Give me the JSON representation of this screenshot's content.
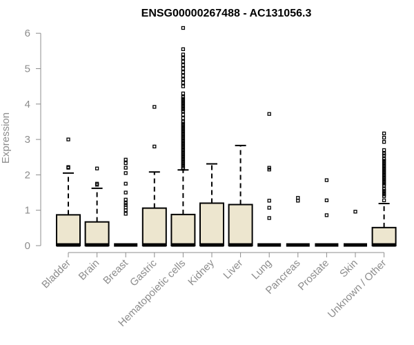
{
  "chart_data": {
    "type": "box",
    "title": "ENSG00000267488 - AC131056.3",
    "ylabel": "Expression",
    "xlabel": "",
    "ylim": [
      0,
      6.2
    ],
    "yticks": [
      0,
      1,
      2,
      3,
      4,
      5,
      6
    ],
    "grid": false,
    "box_fill": "#ede6cf",
    "categories": [
      "Bladder",
      "Brain",
      "Breast",
      "Gastric",
      "Hematopoietic cells",
      "Kidney",
      "Liver",
      "Lung",
      "Pancreas",
      "Prostate",
      "Skin",
      "Unknown / Other"
    ],
    "boxes": [
      {
        "q1": 0,
        "median": 0,
        "q3": 0.87,
        "whisker_high": 2.05,
        "outliers": [
          2.2,
          2.22,
          3.0
        ]
      },
      {
        "q1": 0,
        "median": 0,
        "q3": 0.67,
        "whisker_high": 1.62,
        "outliers": [
          1.72,
          1.75,
          2.18
        ]
      },
      {
        "q1": 0,
        "median": 0,
        "q3": 0,
        "whisker_high": 0,
        "outliers": [
          0.9,
          1.0,
          1.08,
          1.15,
          1.2,
          1.3,
          1.5,
          1.75,
          2.05,
          2.2,
          2.33,
          2.43
        ]
      },
      {
        "q1": 0,
        "median": 0,
        "q3": 1.06,
        "whisker_high": 2.08,
        "outliers": [
          2.8,
          3.92
        ]
      },
      {
        "q1": 0,
        "median": 0,
        "q3": 0.88,
        "whisker_high": 2.14,
        "outliers": [
          2.17,
          2.2,
          2.25,
          2.3,
          2.35,
          2.4,
          2.45,
          2.5,
          2.55,
          2.6,
          2.65,
          2.7,
          2.75,
          2.8,
          2.85,
          2.9,
          2.95,
          3.0,
          3.05,
          3.1,
          3.15,
          3.2,
          3.25,
          3.3,
          3.35,
          3.4,
          3.45,
          3.5,
          3.6,
          3.7,
          3.8,
          3.85,
          3.9,
          3.95,
          4.0,
          4.05,
          4.1,
          4.15,
          4.2,
          4.3,
          4.5,
          4.6,
          4.7,
          4.8,
          4.9,
          5.0,
          5.1,
          5.2,
          5.3,
          5.4,
          5.55,
          6.15
        ]
      },
      {
        "q1": 0,
        "median": 0,
        "q3": 1.2,
        "whisker_high": 2.31,
        "outliers": []
      },
      {
        "q1": 0,
        "median": 0,
        "q3": 1.16,
        "whisker_high": 2.83,
        "outliers": []
      },
      {
        "q1": 0,
        "median": 0,
        "q3": 0,
        "whisker_high": 0,
        "outliers": [
          0.78,
          1.07,
          1.27,
          2.15,
          2.2,
          3.72
        ]
      },
      {
        "q1": 0,
        "median": 0,
        "q3": 0,
        "whisker_high": 0,
        "outliers": [
          1.27,
          1.35
        ]
      },
      {
        "q1": 0,
        "median": 0,
        "q3": 0,
        "whisker_high": 0,
        "outliers": [
          0.86,
          1.28,
          1.85
        ]
      },
      {
        "q1": 0,
        "median": 0,
        "q3": 0,
        "whisker_high": 0,
        "outliers": [
          0.96
        ]
      },
      {
        "q1": 0,
        "median": 0,
        "q3": 0.51,
        "whisker_high": 1.19,
        "outliers": [
          1.28,
          1.4,
          1.45,
          1.5,
          1.55,
          1.6,
          1.7,
          1.75,
          1.8,
          1.85,
          1.9,
          1.95,
          2.0,
          2.05,
          2.1,
          2.15,
          2.2,
          2.25,
          2.3,
          2.35,
          2.4,
          2.45,
          2.55,
          2.6,
          2.7,
          2.93,
          3.05,
          3.17
        ]
      }
    ]
  }
}
